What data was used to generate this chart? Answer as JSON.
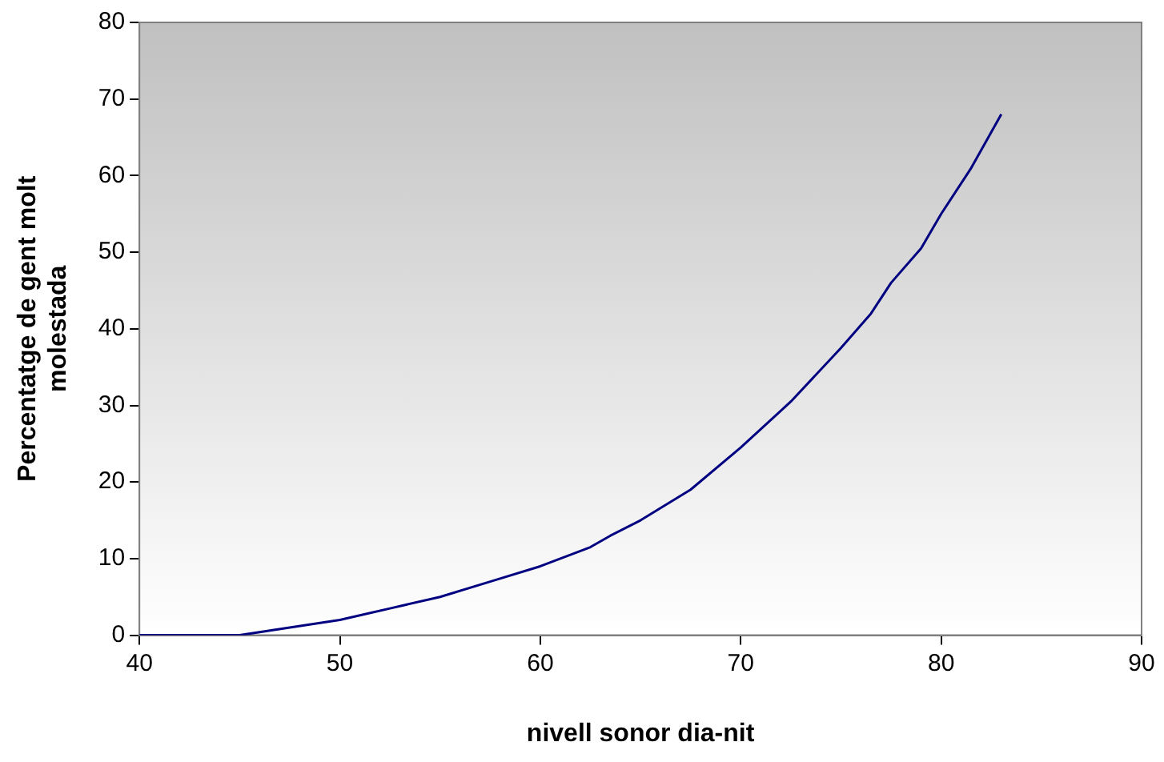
{
  "chart_data": {
    "type": "line",
    "xlabel": "nivell sonor dia-nit",
    "ylabel": "Percentatge de gent molt molestada",
    "x": [
      40,
      45,
      47.5,
      50,
      52.5,
      55,
      57.5,
      60,
      62.5,
      63.5,
      65,
      67.5,
      70,
      72.5,
      75,
      76.5,
      77.5,
      79,
      80,
      81.5,
      83
    ],
    "series": [
      {
        "color": "#000080",
        "values": [
          0,
          0,
          1,
          2,
          3.5,
          5,
          7,
          9,
          11.5,
          13,
          15,
          19,
          24.5,
          30.5,
          37.5,
          42,
          46,
          50.5,
          55,
          61,
          68
        ]
      }
    ],
    "xlim": [
      40,
      90
    ],
    "xticks": [
      40,
      50,
      60,
      70,
      80,
      90
    ],
    "ylim": [
      0,
      80
    ],
    "yticks": [
      0,
      10,
      20,
      30,
      40,
      50,
      60,
      70,
      80
    ],
    "grid": false,
    "legend": false,
    "marker": "none",
    "line_style": "solid"
  }
}
